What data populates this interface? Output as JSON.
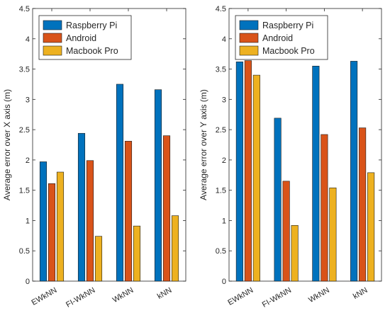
{
  "chart_data": [
    {
      "type": "bar",
      "categories": [
        "EWkNN",
        "FI-WkNN",
        "WkNN",
        "kNN"
      ],
      "series": [
        {
          "name": "Raspberry Pi",
          "color": "#0072BD",
          "values": [
            1.97,
            2.44,
            3.25,
            3.16
          ]
        },
        {
          "name": "Android",
          "color": "#D95319",
          "values": [
            1.61,
            1.99,
            2.31,
            2.4
          ]
        },
        {
          "name": "Macbook Pro",
          "color": "#EDB120",
          "values": [
            1.8,
            0.74,
            0.91,
            1.08
          ]
        }
      ],
      "ylabel": "Average error over X axis (m)",
      "ylim": [
        0,
        4.5
      ],
      "yticks": [
        "0",
        "0.5",
        "1",
        "1.5",
        "2",
        "2.5",
        "3",
        "3.5",
        "4",
        "4.5"
      ],
      "legend_position": "top-left",
      "grid": false
    },
    {
      "type": "bar",
      "categories": [
        "EWkNN",
        "FI-WkNN",
        "WkNN",
        "kNN"
      ],
      "series": [
        {
          "name": "Raspberry Pi",
          "color": "#0072BD",
          "values": [
            3.62,
            2.69,
            3.55,
            3.63
          ]
        },
        {
          "name": "Android",
          "color": "#D95319",
          "values": [
            3.64,
            1.65,
            2.42,
            2.53
          ]
        },
        {
          "name": "Macbook Pro",
          "color": "#EDB120",
          "values": [
            3.4,
            0.92,
            1.54,
            1.79
          ]
        }
      ],
      "ylabel": "Average error over Y axis (m)",
      "ylim": [
        0,
        4.5
      ],
      "yticks": [
        "0",
        "0.5",
        "1",
        "1.5",
        "2",
        "2.5",
        "3",
        "3.5",
        "4",
        "4.5"
      ],
      "legend_position": "top-left",
      "grid": false
    }
  ]
}
